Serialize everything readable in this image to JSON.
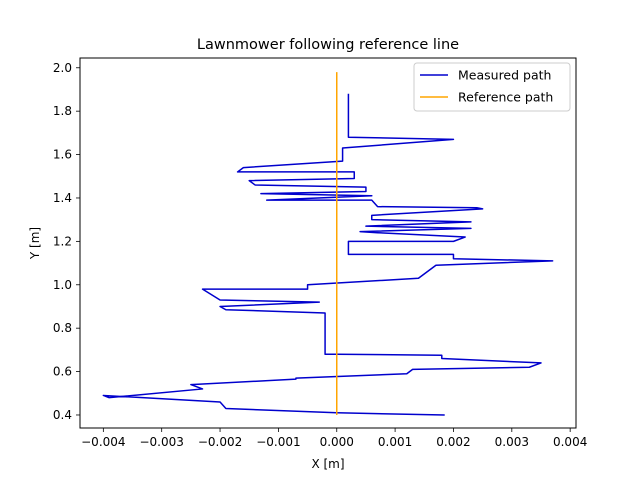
{
  "chart_data": {
    "type": "line",
    "title": "Lawnmower following reference line",
    "xlabel": "X [m]",
    "ylabel": "Y [m]",
    "xlim": [
      -0.0044,
      0.0041
    ],
    "ylim": [
      0.34,
      2.045
    ],
    "xticks": [
      -0.004,
      -0.003,
      -0.002,
      -0.001,
      0.0,
      0.001,
      0.002,
      0.003,
      0.004
    ],
    "xtick_labels": [
      "−0.004",
      "−0.003",
      "−0.002",
      "−0.001",
      "0.000",
      "0.001",
      "0.002",
      "0.003",
      "0.004"
    ],
    "yticks": [
      0.4,
      0.6,
      0.8,
      1.0,
      1.2,
      1.4,
      1.6,
      1.8,
      2.0
    ],
    "ytick_labels": [
      "0.4",
      "0.6",
      "0.8",
      "1.0",
      "1.2",
      "1.4",
      "1.6",
      "1.8",
      "2.0"
    ],
    "grid": false,
    "legend_position": "top-right",
    "series": [
      {
        "name": "Measured path",
        "color": "#0000cd",
        "x": [
          0.00185,
          0.0,
          0.0,
          -0.0019,
          -0.002,
          -0.004,
          -0.0039,
          -0.0023,
          -0.0025,
          -0.0007,
          -0.0007,
          0.0012,
          0.0013,
          0.0033,
          0.0035,
          0.0018,
          0.0018,
          0.0,
          -0.0002,
          -0.0002,
          -0.0019,
          -0.002,
          -0.0003,
          -0.002,
          -0.0023,
          -0.0005,
          -0.0005,
          0.0014,
          0.0017,
          0.0037,
          0.002,
          0.002,
          0.0002,
          0.0002,
          0.002,
          0.0022,
          0.0007,
          0.0004,
          0.0023,
          0.0005,
          0.0023,
          0.0006,
          0.0006,
          0.0025,
          0.0024,
          0.0007,
          0.0006,
          -0.0012,
          0.0006,
          -0.0013,
          0.0005,
          0.0005,
          -0.0014,
          -0.0015,
          0.0003,
          0.0003,
          -0.0017,
          -0.0016,
          0.0001,
          0.0001,
          0.002,
          0.0002,
          0.0002,
          0.0002
        ],
        "y": [
          0.4,
          0.41,
          0.41,
          0.43,
          0.46,
          0.49,
          0.48,
          0.52,
          0.54,
          0.565,
          0.57,
          0.59,
          0.61,
          0.62,
          0.64,
          0.66,
          0.675,
          0.68,
          0.68,
          0.87,
          0.885,
          0.9,
          0.92,
          0.93,
          0.98,
          0.98,
          1.0,
          1.03,
          1.09,
          1.11,
          1.12,
          1.14,
          1.14,
          1.2,
          1.2,
          1.22,
          1.24,
          1.245,
          1.26,
          1.27,
          1.29,
          1.3,
          1.32,
          1.35,
          1.355,
          1.36,
          1.39,
          1.39,
          1.41,
          1.42,
          1.43,
          1.45,
          1.46,
          1.48,
          1.49,
          1.52,
          1.52,
          1.54,
          1.57,
          1.63,
          1.67,
          1.68,
          1.73,
          1.88
        ]
      },
      {
        "name": "Reference path",
        "color": "#ffa500",
        "x": [
          0.0,
          0.0
        ],
        "y": [
          0.4,
          1.98
        ]
      }
    ]
  }
}
